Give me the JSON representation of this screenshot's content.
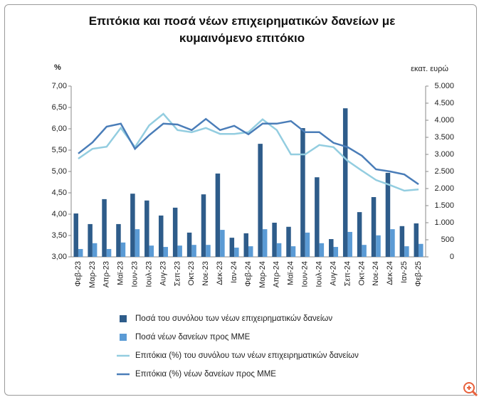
{
  "chart_data": {
    "type": "bar-line",
    "title": "Επιτόκια και ποσά νέων επιχειρηματικών δανείων με κυμαινόμενο επιτόκιο",
    "y_label": "%",
    "y2_label": "εκατ. ευρώ",
    "categories": [
      "Φεβ-23",
      "Μαρ-23",
      "Απρ-23",
      "Μαϊ-23",
      "Ιουν-23",
      "Ιουλ-23",
      "Αυγ-23",
      "Σεπ-23",
      "Οκτ-23",
      "Νοε-23",
      "Δεκ-23",
      "Ιαν-24",
      "Φεβ-24",
      "Μαρ-24",
      "Απρ-24",
      "Μαϊ-24",
      "Ιουν-24",
      "Ιουλ-24",
      "Αυγ-24",
      "Σεπ-24",
      "Οκτ-24",
      "Νοε-24",
      "Δεκ-24",
      "Ιαν-25",
      "Φεβ-25"
    ],
    "ylim": [
      3,
      7
    ],
    "yticks": [
      {
        "value": 3,
        "label": "3,00"
      },
      {
        "value": 3.5,
        "label": "3,50"
      },
      {
        "value": 4,
        "label": "4,00"
      },
      {
        "value": 4.5,
        "label": "4,50"
      },
      {
        "value": 5,
        "label": "5,00"
      },
      {
        "value": 5.5,
        "label": "5,50"
      },
      {
        "value": 6,
        "label": "6,00"
      },
      {
        "value": 6.5,
        "label": "6,50"
      },
      {
        "value": 7,
        "label": "7,00"
      }
    ],
    "y2lim": [
      0,
      5000
    ],
    "y2ticks": [
      0,
      500,
      {
        "value": 1000,
        "label": "1.000"
      },
      {
        "value": 1500,
        "label": "1.500"
      },
      {
        "value": 2000,
        "label": "2.000"
      },
      {
        "value": 2500,
        "label": "2.500"
      },
      {
        "value": 3000,
        "label": "3.000"
      },
      {
        "value": 3500,
        "label": "3.500"
      },
      {
        "value": 4000,
        "label": "4.000"
      },
      {
        "value": 4500,
        "label": "4.500"
      },
      {
        "value": 5000,
        "label": "5.000"
      }
    ],
    "series": [
      {
        "name": "Ποσά του συνόλου των νέων επιχειρηματικών δανείων",
        "kind": "bar",
        "axis": "y2",
        "color": "#2e5c8a",
        "values": [
          1270,
          960,
          1690,
          960,
          1850,
          1650,
          1210,
          1440,
          710,
          1830,
          2440,
          560,
          690,
          3310,
          1000,
          880,
          3770,
          2330,
          520,
          4350,
          1310,
          1750,
          2460,
          900,
          980
        ]
      },
      {
        "name": "Ποσά νέων δανείων προς ΜΜΕ",
        "kind": "bar",
        "axis": "y2",
        "color": "#5b9bd5",
        "values": [
          230,
          400,
          230,
          420,
          810,
          330,
          290,
          330,
          350,
          350,
          790,
          270,
          310,
          810,
          400,
          310,
          710,
          400,
          290,
          730,
          350,
          630,
          810,
          310,
          380
        ]
      },
      {
        "name": "Επιτόκια (%) του συνόλου των νέων επιχειρηματικών δανείων",
        "kind": "line",
        "color": "#93cde0",
        "values": [
          5.3,
          5.53,
          5.58,
          6.02,
          5.57,
          6.08,
          6.35,
          5.97,
          5.92,
          6.02,
          5.88,
          5.88,
          5.92,
          6.22,
          5.97,
          5.4,
          5.4,
          5.62,
          5.57,
          5.25,
          5.02,
          4.8,
          4.68,
          4.55,
          4.58
        ]
      },
      {
        "name": "Επιτόκια (%) νέων δανείων προς ΜΜΕ",
        "kind": "line",
        "color": "#4a7db8",
        "values": [
          5.42,
          5.68,
          6.05,
          6.12,
          5.53,
          5.85,
          6.12,
          6.1,
          5.97,
          6.23,
          5.97,
          6.07,
          5.87,
          6.12,
          6.12,
          6.18,
          5.92,
          5.92,
          5.67,
          5.57,
          5.37,
          5.05,
          5.0,
          4.93,
          4.7
        ]
      }
    ]
  }
}
